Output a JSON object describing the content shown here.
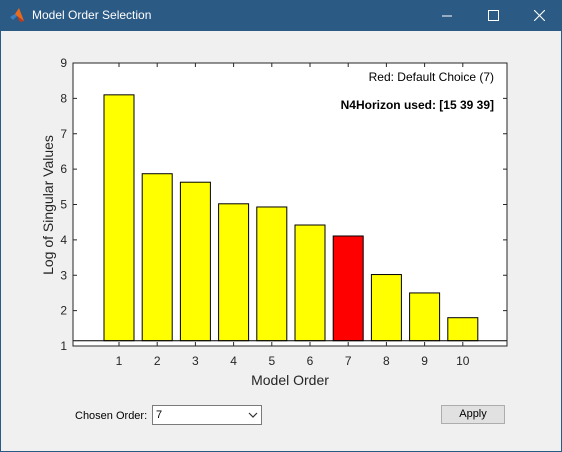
{
  "window": {
    "title": "Model Order Selection",
    "icon": "matlab-logo-icon",
    "controls": [
      "minimize-icon",
      "maximize-icon",
      "close-icon"
    ]
  },
  "chart_data": {
    "type": "bar",
    "categories": [
      "1",
      "2",
      "3",
      "4",
      "5",
      "6",
      "7",
      "8",
      "9",
      "10"
    ],
    "values": [
      8.1,
      5.87,
      5.63,
      5.02,
      4.93,
      4.42,
      4.11,
      3.02,
      2.5,
      1.8
    ],
    "highlight_index": 6,
    "bar_color": "#ffff00",
    "highlight_color": "#ff0000",
    "baseline": 1.15,
    "xlabel": "Model Order",
    "ylabel": "Log of Singular Values",
    "ylim": [
      1,
      9
    ],
    "yticks": [
      "1",
      "2",
      "3",
      "4",
      "5",
      "6",
      "7",
      "8",
      "9"
    ],
    "annotations": {
      "default_choice": "Red: Default Choice (7)",
      "horizon": "N4Horizon used: [15 39 39]"
    }
  },
  "controls": {
    "chosen_order_label": "Chosen Order:",
    "chosen_order_value": "7",
    "apply_label": "Apply"
  }
}
